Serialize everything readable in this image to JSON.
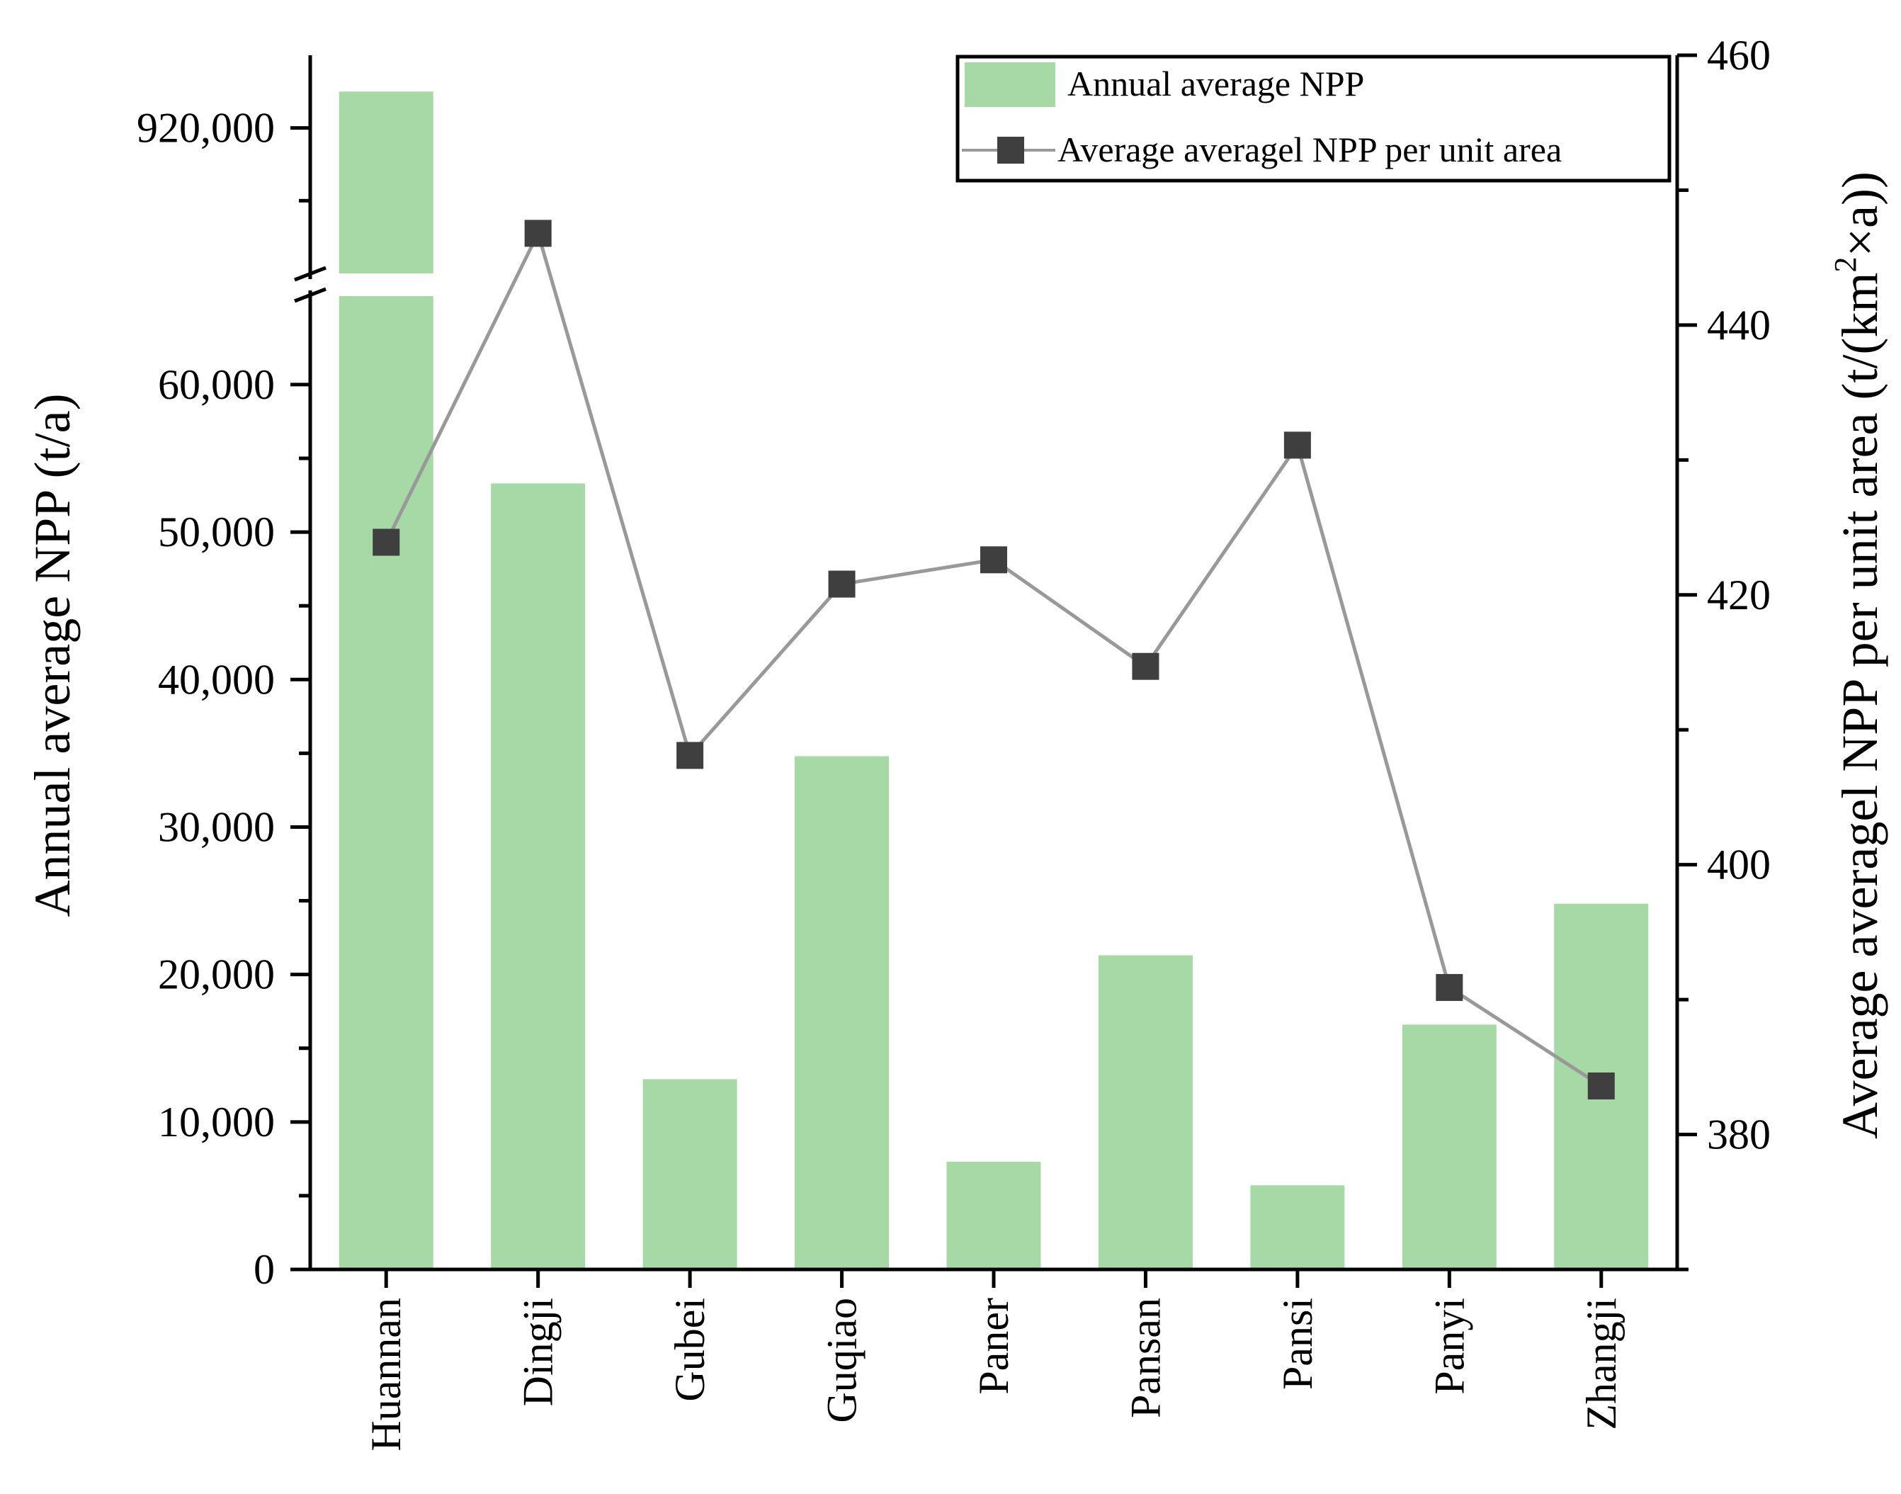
{
  "chart_data": {
    "type": "bar+line",
    "categories": [
      "Huannan",
      "Dingji",
      "Gubei",
      "Guqiao",
      "Paner",
      "Pansan",
      "Pansi",
      "Panyi",
      "Zhangji"
    ],
    "series": [
      {
        "name": "Annual average NPP",
        "type": "bar",
        "axis": "left",
        "color": "#a6d9a5",
        "values": [
          925000,
          53300,
          12900,
          34800,
          7300,
          21300,
          5700,
          16600,
          24800
        ]
      },
      {
        "name": "Average averagel NPP per unit area",
        "type": "line",
        "axis": "right",
        "line_color": "#999999",
        "marker_color": "#3f3f3f",
        "values": [
          423.9,
          446.8,
          408.1,
          420.8,
          422.6,
          414.7,
          431.1,
          390.9,
          383.6
        ]
      }
    ],
    "left_axis": {
      "label": "Annual average NPP (t/a)",
      "lower_segment": {
        "range": [
          0,
          66000
        ],
        "ticks": [
          0,
          10000,
          20000,
          30000,
          40000,
          50000,
          60000
        ],
        "tick_labels": [
          "0",
          "10,000",
          "20,000",
          "30,000",
          "40,000",
          "50,000",
          "60,000"
        ]
      },
      "upper_segment": {
        "range": [
          900000,
          930000
        ],
        "ticks": [
          920000
        ],
        "tick_labels": [
          "920,000"
        ]
      },
      "axis_break": true
    },
    "right_axis": {
      "label_main": "Average averagel NPP per unit area (t/(km",
      "label_sup": "2",
      "label_tail": "×a))",
      "range": [
        370,
        460
      ],
      "ticks": [
        380,
        400,
        420,
        440,
        460
      ],
      "tick_labels": [
        "380",
        "400",
        "420",
        "440",
        "460"
      ]
    },
    "legend": {
      "position": "top-right",
      "entries": [
        "Annual average NPP",
        "Average averagel NPP per unit area"
      ]
    }
  }
}
